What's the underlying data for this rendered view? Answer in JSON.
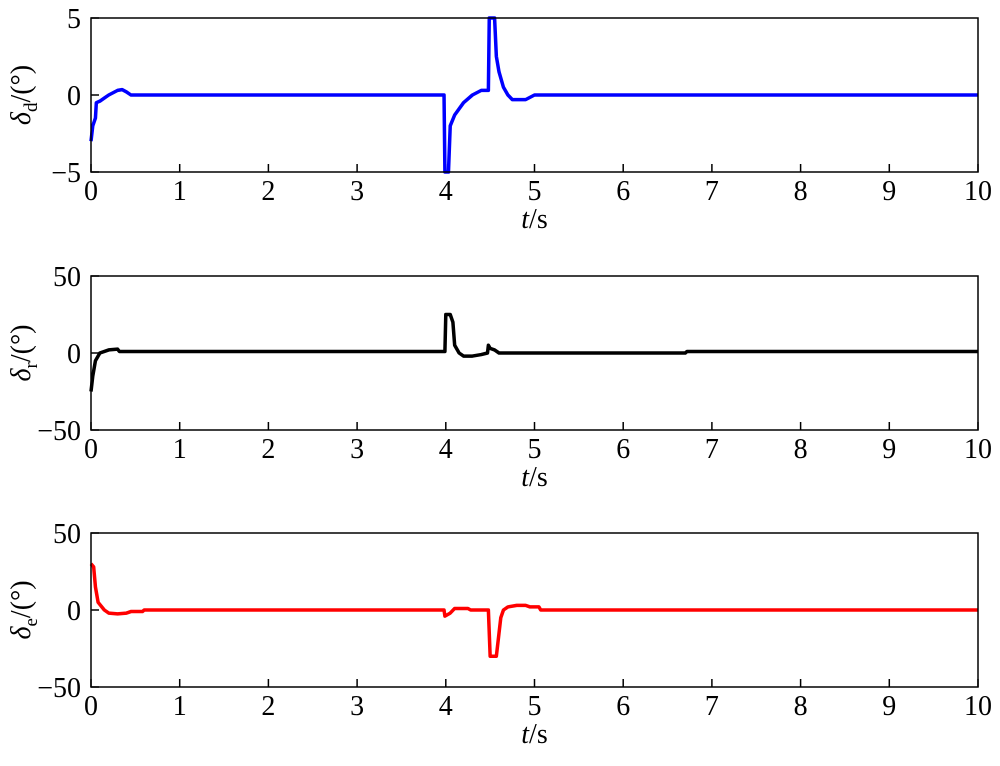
{
  "chart_data": [
    {
      "type": "line",
      "ylabel": {
        "symbol": "δ",
        "subscript": "d",
        "unit": "/(°)"
      },
      "xlabel": {
        "symbol": "t",
        "unit": "/s"
      },
      "xlim": [
        0,
        10
      ],
      "xticks": [
        0,
        1,
        2,
        3,
        4,
        5,
        6,
        7,
        8,
        9,
        10
      ],
      "ylim": [
        -5,
        5
      ],
      "yticks": [
        {
          "value": -5,
          "label": "−5"
        },
        0,
        5
      ],
      "x": [
        0,
        0.02,
        0.05,
        0.06,
        0.1,
        0.15,
        0.2,
        0.3,
        0.35,
        0.4,
        0.45,
        0.5,
        3.98,
        3.99,
        4.03,
        4.05,
        4.1,
        4.2,
        4.3,
        4.4,
        4.48,
        4.49,
        4.55,
        4.57,
        4.6,
        4.65,
        4.7,
        4.75,
        4.9,
        5.0,
        10
      ],
      "series": [
        {
          "color": "#0000ff",
          "values": [
            -3,
            -2,
            -1.5,
            -0.5,
            -0.4,
            -0.2,
            0,
            0.3,
            0.35,
            0.2,
            0,
            0,
            0,
            -5,
            -5,
            -2,
            -1.3,
            -0.5,
            0,
            0.3,
            0.3,
            5,
            5,
            2.5,
            1.5,
            0.5,
            0,
            -0.3,
            -0.3,
            0,
            0
          ]
        }
      ]
    },
    {
      "type": "line",
      "ylabel": {
        "symbol": "δ",
        "subscript": "r",
        "unit": "/(°)"
      },
      "xlabel": {
        "symbol": "t",
        "unit": "/s"
      },
      "xlim": [
        0,
        10
      ],
      "xticks": [
        0,
        1,
        2,
        3,
        4,
        5,
        6,
        7,
        8,
        9,
        10
      ],
      "ylim": [
        -50,
        50
      ],
      "yticks": [
        {
          "value": -50,
          "label": "−50"
        },
        0,
        50
      ],
      "x": [
        0,
        0.02,
        0.05,
        0.1,
        0.2,
        0.3,
        0.32,
        3.99,
        4,
        4.05,
        4.08,
        4.1,
        4.15,
        4.2,
        4.3,
        4.4,
        4.47,
        4.48,
        4.5,
        4.55,
        4.6,
        6.7,
        6.72,
        10
      ],
      "series": [
        {
          "color": "#000000",
          "values": [
            -25,
            -15,
            -5,
            0,
            2,
            2.5,
            1,
            1,
            25,
            25,
            20,
            5,
            0,
            -2,
            -2,
            -1,
            0,
            5,
            3,
            2,
            0,
            0,
            1,
            1
          ]
        }
      ]
    },
    {
      "type": "line",
      "ylabel": {
        "symbol": "δ",
        "subscript": "e",
        "unit": "/(°)"
      },
      "xlabel": {
        "symbol": "t",
        "unit": "/s"
      },
      "xlim": [
        0,
        10
      ],
      "xticks": [
        0,
        1,
        2,
        3,
        4,
        5,
        6,
        7,
        8,
        9,
        10
      ],
      "ylim": [
        -50,
        50
      ],
      "yticks": [
        {
          "value": -50,
          "label": "−50"
        },
        0,
        50
      ],
      "x": [
        0,
        0.03,
        0.05,
        0.08,
        0.15,
        0.2,
        0.3,
        0.4,
        0.45,
        0.58,
        0.6,
        3.98,
        3.99,
        4.05,
        4.1,
        4.25,
        4.28,
        4.48,
        4.5,
        4.57,
        4.6,
        4.62,
        4.65,
        4.7,
        4.8,
        4.9,
        4.95,
        5.05,
        5.07,
        10
      ],
      "series": [
        {
          "color": "#ff0000",
          "values": [
            30,
            28,
            15,
            5,
            0,
            -2,
            -2.5,
            -2,
            -1,
            -1,
            0,
            0,
            -4,
            -2,
            1,
            1,
            0,
            0,
            -30,
            -30,
            -15,
            -5,
            0,
            2,
            3,
            3,
            2,
            2,
            0,
            0
          ]
        }
      ]
    }
  ]
}
